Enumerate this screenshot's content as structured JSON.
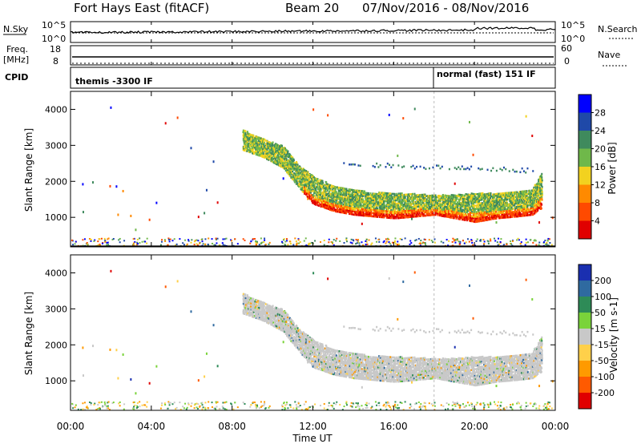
{
  "header": {
    "station": "Fort Hays East (fitACF)",
    "beam": "Beam 20",
    "date_range": "07/Nov/2016 - 08/Nov/2016"
  },
  "top_panels": {
    "nsky_label": "N.Sky",
    "nsearch_label": "N.Search",
    "nsky_ticks": [
      "10^5",
      "10^0"
    ],
    "nsearch_ticks": [
      "10^5",
      "10^0"
    ],
    "freq_label_1": "Freq.",
    "freq_label_2": "[MHz]",
    "freq_ticks": [
      "18",
      "8"
    ],
    "nave_label": "Nave",
    "nave_ticks": [
      "60",
      "0"
    ],
    "cpid_label": "CPID",
    "cpid_segments": [
      {
        "label": "themis -3300 IF",
        "start_hour": 0,
        "end_hour": 18.0
      },
      {
        "label": "normal (fast) 151 IF",
        "start_hour": 18.0,
        "end_hour": 24
      }
    ]
  },
  "time_axis": {
    "label": "Time UT",
    "ticks": [
      "00:00",
      "04:00",
      "08:00",
      "12:00",
      "16:00",
      "20:00",
      "00:00"
    ]
  },
  "chart_data": [
    {
      "type": "heatmap",
      "title": "Power",
      "ylabel": "Slant Range [km]",
      "ylim": [
        180,
        4500
      ],
      "yticks": [
        "1000",
        "2000",
        "3000",
        "4000"
      ],
      "xlim": [
        0,
        24
      ],
      "colorbar": {
        "label": "Power [dB]",
        "ticks": [
          "4",
          "8",
          "12",
          "16",
          "20",
          "24",
          "28"
        ],
        "range": [
          0,
          32
        ],
        "colors": [
          "#0000ff",
          "#1f49a8",
          "#3f8a5d",
          "#6fb84a",
          "#f2d21f",
          "#ff8a00",
          "#ff4a00",
          "#e00000"
        ]
      },
      "scatter_band": {
        "hours": [
          8.5,
          9.5,
          10.5,
          11.2,
          12.0,
          13.0,
          14.0,
          15.0,
          16.0,
          17.0,
          18.0,
          19.0,
          20.0,
          21.0,
          22.0,
          22.8,
          23.3
        ],
        "upper_km": [
          3450,
          3200,
          3000,
          2500,
          2150,
          1900,
          1780,
          1720,
          1700,
          1680,
          1650,
          1650,
          1700,
          1700,
          1750,
          1800,
          2300
        ],
        "lower_km": [
          2900,
          2700,
          2400,
          1900,
          1400,
          1200,
          1100,
          1050,
          1000,
          1050,
          1100,
          1000,
          900,
          1000,
          1050,
          1100,
          1300
        ]
      }
    },
    {
      "type": "heatmap",
      "title": "Velocity",
      "ylabel": "Slant Range [km]",
      "ylim": [
        180,
        4500
      ],
      "yticks": [
        "1000",
        "2000",
        "3000",
        "4000"
      ],
      "xlim": [
        0,
        24
      ],
      "colorbar": {
        "label": "Velocity [m s-1]",
        "ticks": [
          "200",
          "100",
          "50",
          "15",
          "-15",
          "-50",
          "-100",
          "-200"
        ],
        "colors": [
          "#1a2fb0",
          "#2f6aa0",
          "#2e8b57",
          "#7ad33a",
          "#c8c8c8",
          "#ffd04a",
          "#ff9a00",
          "#ff5a00",
          "#e00000"
        ]
      }
    }
  ]
}
